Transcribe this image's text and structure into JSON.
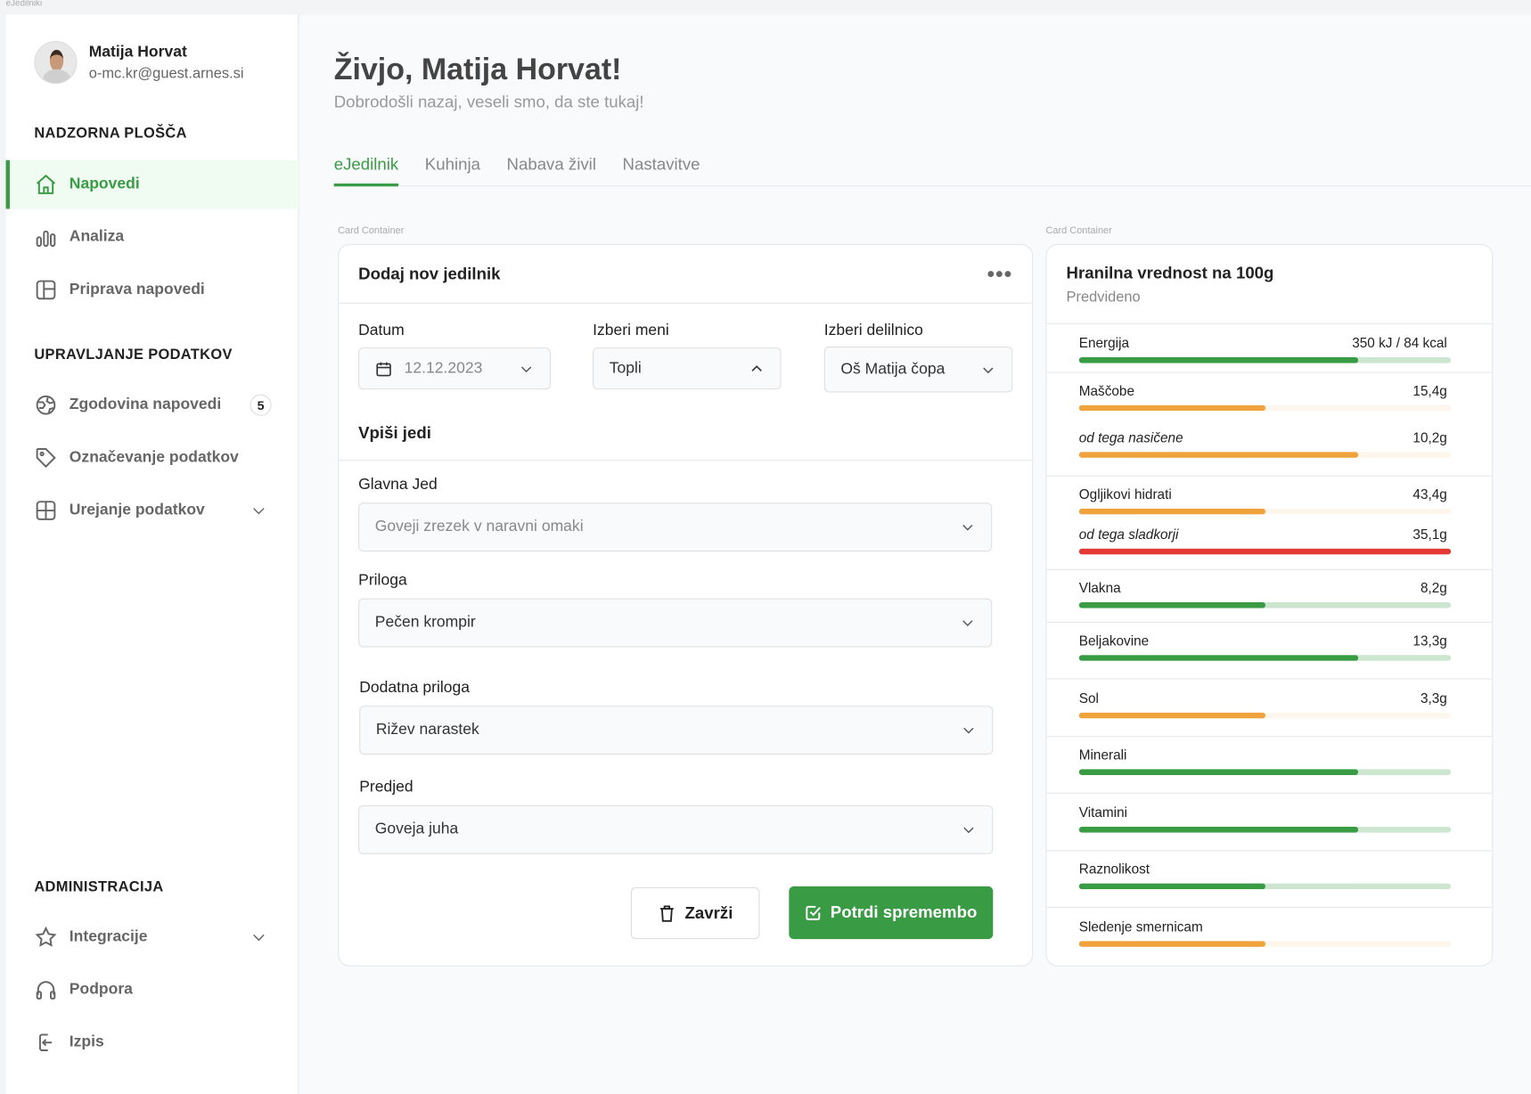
{
  "app_title": "eJedilniki",
  "user": {
    "name": "Matija Horvat",
    "email": "o-mc.kr@guest.arnes.si"
  },
  "sidebar": {
    "sections": [
      "NADZORNA PLOŠČA",
      "UPRAVLJANJE PODATKOV",
      "ADMINISTRACIJA"
    ],
    "items": [
      {
        "label": "Napovedi",
        "icon": "home-icon",
        "active": true
      },
      {
        "label": "Analiza",
        "icon": "bar-chart-icon"
      },
      {
        "label": "Priprava napovedi",
        "icon": "layout-icon"
      },
      {
        "label": "Zgodovina napovedi",
        "icon": "globe-icon",
        "badge": "5"
      },
      {
        "label": "Označevanje podatkov",
        "icon": "tag-icon"
      },
      {
        "label": "Urejanje podatkov",
        "icon": "grid-icon"
      },
      {
        "label": "Integracije",
        "icon": "star-icon"
      },
      {
        "label": "Podpora",
        "icon": "headphones-icon"
      },
      {
        "label": "Izpis",
        "icon": "logout-icon"
      }
    ]
  },
  "header": {
    "title": "Živjo, Matija Horvat!",
    "subtitle": "Dobrodošli nazaj, veseli smo, da ste tukaj!"
  },
  "tabs": [
    "eJedilnik",
    "Kuhinja",
    "Nabava živil",
    "Nastavitve"
  ],
  "card_label": "Card Container",
  "form": {
    "title": "Dodaj nov jedilnik",
    "date_label": "Datum",
    "date_value": "12.12.2023",
    "menu_label": "Izberi meni",
    "menu_value": "Topli",
    "site_label": "Izberi delilnico",
    "site_value": "Oš Matija čopa",
    "section": "Vpiši jedi",
    "main_label": "Glavna Jed",
    "main_placeholder": "Goveji zrezek v naravni omaki",
    "side_label": "Priloga",
    "side_value": "Pečen krompir",
    "extra_label": "Dodatna priloga",
    "extra_value": "Rižev narastek",
    "starter_label": "Predjed",
    "starter_value": "Goveja juha",
    "discard": "Zavrži",
    "confirm": "Potrdi spremembo"
  },
  "colors": {
    "green": "#3a9b45",
    "orange": "#f0a23c",
    "red": "#e53935"
  },
  "nutrition": {
    "title": "Hranilna vrednost na 100g",
    "subtitle": "Predvideno",
    "items": [
      {
        "label": "Energija",
        "value": "350 kJ / 84 kcal",
        "level": 0.75,
        "color": "green"
      },
      {
        "label": "Maščobe",
        "value": "15,4g",
        "level": 0.5,
        "color": "orange"
      },
      {
        "label": "od tega nasičene",
        "value": "10,2g",
        "level": 0.75,
        "color": "orange",
        "italic": true
      },
      {
        "label": "Ogljikovi hidrati",
        "value": "43,4g",
        "level": 0.5,
        "color": "orange"
      },
      {
        "label": "od tega sladkorji",
        "value": "35,1g",
        "level": 1.0,
        "color": "red",
        "italic": true
      },
      {
        "label": "Vlakna",
        "value": "8,2g",
        "level": 0.5,
        "color": "green"
      },
      {
        "label": "Beljakovine",
        "value": "13,3g",
        "level": 0.75,
        "color": "green"
      },
      {
        "label": "Sol",
        "value": "3,3g",
        "level": 0.5,
        "color": "orange"
      },
      {
        "label": "Minerali",
        "value": "",
        "level": 0.75,
        "color": "green"
      },
      {
        "label": "Vitamini",
        "value": "",
        "level": 0.75,
        "color": "green"
      },
      {
        "label": "Raznolikost",
        "value": "",
        "level": 0.5,
        "color": "green"
      },
      {
        "label": "Sledenje smernicam",
        "value": "",
        "level": 0.5,
        "color": "orange"
      }
    ]
  }
}
